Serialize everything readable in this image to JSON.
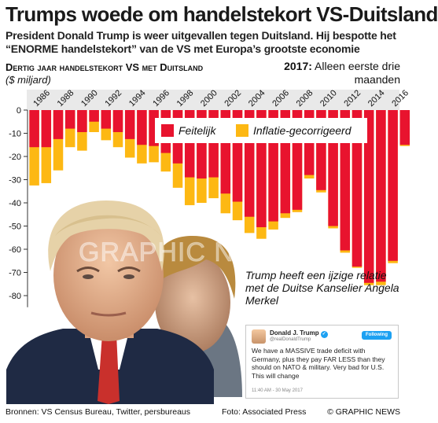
{
  "headline": "Trumps woede om handelstekort VS-Duitsland",
  "standfirst": "President Donald Trump is weer uitgevallen tegen Duitsland. Hij bespotte het “ENORME handelstekort” van de VS met Europa’s grootste economie",
  "chart_header": {
    "title": "Dertig jaar handelstekort VS met Duitsland",
    "unit": "($ miljard)"
  },
  "note_2017": {
    "year": "2017:",
    "text": "Alleen eerste drie maanden"
  },
  "callout": "Trump heeft een ijzige relatie met de Duitse Kanselier Angela Merkel",
  "tweet": {
    "name": "Donald J. Trump",
    "handle": "@realDonaldTrump",
    "follow_label": "Following",
    "text": "We have a MASSIVE trade deficit with Germany, plus they pay FAR LESS than they should on NATO & military. Very bad for U.S. This will change",
    "timestamp": "11:40 AM - 30 May 2017"
  },
  "footer": {
    "sources": "Bronnen: VS Census Bureau, Twitter, persbureaus",
    "photo": "Foto: Associated Press",
    "brand": "© GRAPHIC NEWS"
  },
  "watermark": "GRAPHIC NEWS",
  "colors": {
    "actual": "#e8132e",
    "inflation": "#fdb813",
    "header_background": "#e9e9e9",
    "axis_text": "#111111"
  },
  "chart_data": {
    "type": "bar",
    "x": [
      1986,
      1987,
      1988,
      1989,
      1990,
      1991,
      1992,
      1993,
      1994,
      1995,
      1996,
      1997,
      1998,
      1999,
      2000,
      2001,
      2002,
      2003,
      2004,
      2005,
      2006,
      2007,
      2008,
      2009,
      2010,
      2011,
      2012,
      2013,
      2014,
      2015,
      2016,
      2017
    ],
    "xticks": [
      "1986",
      "1988",
      "1990",
      "1992",
      "1994",
      "1996",
      "1998",
      "2000",
      "2002",
      "2004",
      "2006",
      "2008",
      "2010",
      "2012",
      "2014",
      "2016"
    ],
    "series": [
      {
        "name": "Feitelijk",
        "values": [
          -16,
          -16,
          -12.5,
          -8,
          -9.5,
          -5,
          -8,
          -9.5,
          -12.5,
          -15,
          -15.5,
          -18.5,
          -23,
          -29,
          -29.5,
          -29,
          -36,
          -39.5,
          -46,
          -50.5,
          -48,
          -44.5,
          -43,
          -28,
          -34.5,
          -50,
          -60.5,
          -67.5,
          -74.5,
          -74,
          -65,
          -15
        ]
      },
      {
        "name": "Inflatie-gecorrigeerd",
        "values": [
          -32.5,
          -31.5,
          -26,
          -16,
          -17.5,
          -9.5,
          -13,
          -16,
          -20.5,
          -23,
          -22.5,
          -26.5,
          -33.5,
          -41,
          -40,
          -38,
          -44.5,
          -47.5,
          -53,
          -55.5,
          -51.5,
          -46.5,
          -44,
          -29.5,
          -35.5,
          -51,
          -61.5,
          -68,
          -75.5,
          -75.5,
          -66,
          -15.5
        ]
      }
    ],
    "ylim": [
      -85,
      0
    ],
    "yticks": [
      0,
      -10,
      -20,
      -30,
      -40,
      -50,
      -60,
      -70,
      -80
    ],
    "ylabel": "($ miljard)",
    "xlabel": "",
    "legend_position": "top-right",
    "grid": false
  }
}
